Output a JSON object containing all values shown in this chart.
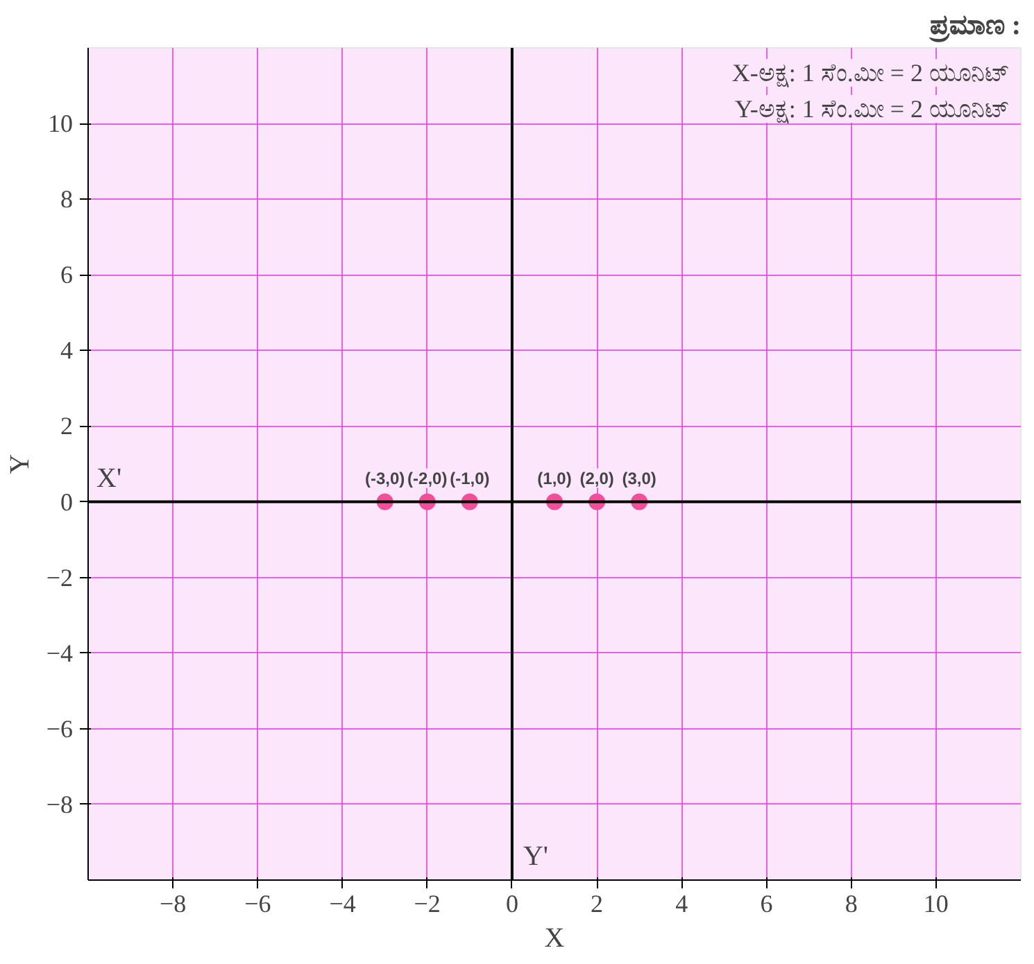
{
  "chart_data": {
    "type": "scatter",
    "title": "ಪ್ರಮಾಣ :",
    "xlabel": "X",
    "ylabel": "Y",
    "annotations": [
      "X-ಅಕ್ಷ: 1 ಸೆಂ.ಮೀ = 2 ಯೂನಿಟ್",
      "Y-ಅಕ್ಷ: 1 ಸೆಂ.ಮೀ = 2 ಯೂನಿಟ್",
      "X'",
      "Y'",
      {
        "text": "(-3,0)",
        "x": -3,
        "y": 0
      },
      {
        "text": "(-2,0)",
        "x": -2,
        "y": 0
      },
      {
        "text": "(-1,0)",
        "x": -1,
        "y": 0
      },
      {
        "text": "(1,0)",
        "x": 1,
        "y": 0
      },
      {
        "text": "(2,0)",
        "x": 2,
        "y": 0
      },
      {
        "text": "(3,0)",
        "x": 3,
        "y": 0
      }
    ],
    "x": [
      -3,
      -2,
      -1,
      1,
      2,
      3
    ],
    "series": [
      {
        "color": "#f0509a",
        "values": [
          0,
          0,
          0,
          0,
          0,
          0
        ]
      }
    ],
    "xlim": [
      -10,
      12
    ],
    "ylim": [
      -10,
      12
    ],
    "xticks": [
      -8,
      -6,
      -4,
      -2,
      0,
      2,
      4,
      6,
      8,
      10
    ],
    "yticks": [
      -8,
      -6,
      -4,
      -2,
      0,
      2,
      4,
      6,
      8,
      10
    ],
    "grid": true,
    "marker": "circle"
  }
}
